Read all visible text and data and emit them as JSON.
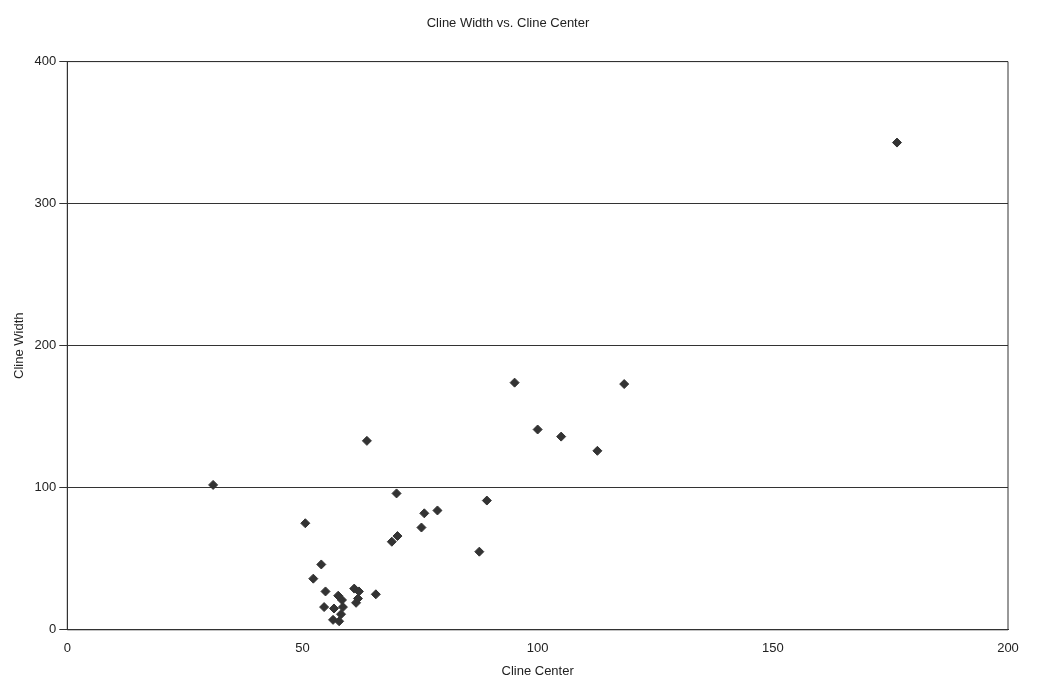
{
  "chart_data": {
    "type": "scatter",
    "title": "Cline Width vs. Cline Center",
    "xlabel": "Cline Center",
    "ylabel": "Cline Width",
    "x": [
      31,
      50.6,
      63.7,
      54,
      52.3,
      54.9,
      70,
      69,
      70.2,
      75.3,
      75.9,
      78.7,
      87.6,
      89.2,
      95.1,
      100,
      105,
      112.7,
      118.4,
      176.4,
      65.6,
      57.6,
      61,
      62,
      61.4,
      61.8,
      54.6,
      56.7,
      58.6,
      58.2,
      56.5,
      57.8,
      58.4
    ],
    "values": [
      102,
      75,
      133,
      46,
      36,
      27,
      96,
      62,
      66,
      72,
      82,
      84,
      55,
      91,
      174,
      141,
      136,
      126,
      173,
      343,
      25,
      24,
      29,
      27,
      19,
      22,
      16,
      15,
      16,
      11,
      7,
      6,
      21
    ],
    "color": "#333333",
    "marker": "diamond",
    "xlim": [
      0,
      200
    ],
    "ylim": [
      0,
      400
    ],
    "xticks": [
      0,
      50,
      100,
      150,
      200
    ],
    "yticks": [
      0,
      100,
      200,
      300,
      400
    ],
    "grid": "y",
    "legend": false
  }
}
